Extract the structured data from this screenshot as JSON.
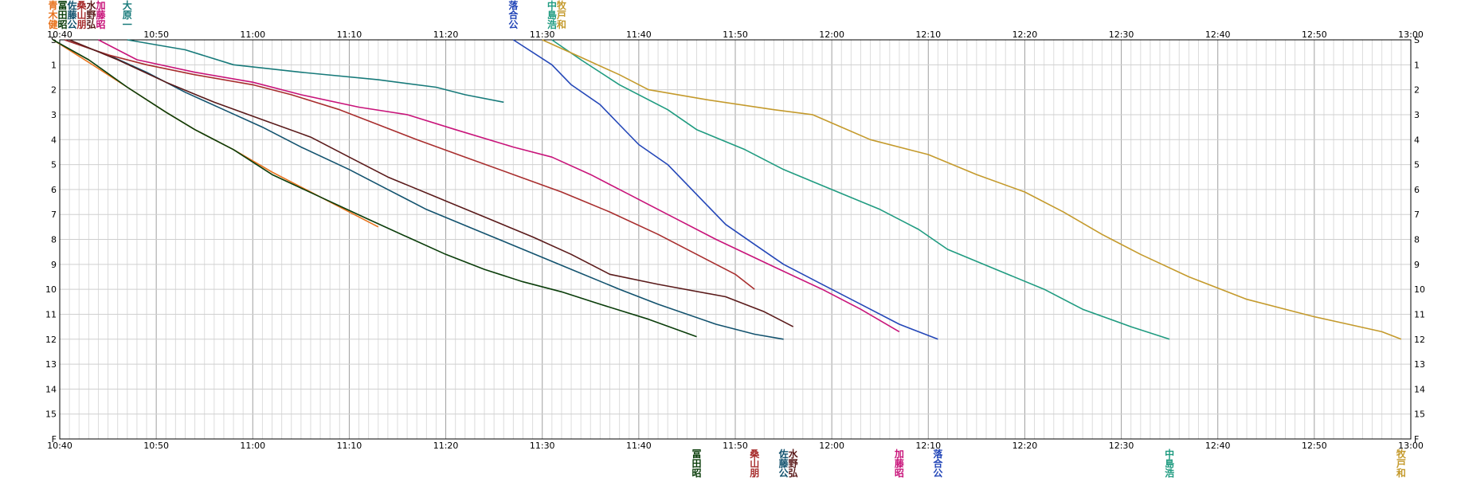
{
  "chart_data": {
    "type": "line",
    "title": "",
    "xlabel": "",
    "ylabel": "",
    "x_ticks": [
      "10:40",
      "10:50",
      "11:00",
      "11:10",
      "11:20",
      "11:30",
      "11:40",
      "11:50",
      "12:00",
      "12:10",
      "12:20",
      "12:30",
      "12:40",
      "12:50",
      "13:00"
    ],
    "xlim": [
      "10:40",
      "13:00"
    ],
    "checkpoint_labels": [
      "S",
      "1",
      "2",
      "3",
      "4",
      "5",
      "6",
      "7",
      "8",
      "9",
      "10",
      "11",
      "12",
      "13",
      "14",
      "15",
      "F"
    ],
    "series": [
      {
        "name": "青木健",
        "label_top": "青木健",
        "color": "#e8741e",
        "points": [
          [
            "10:39.3",
            0
          ],
          [
            "10:43",
            0.9
          ],
          [
            "10:47",
            1.9
          ],
          [
            "10:51",
            2.9
          ],
          [
            "10:54",
            3.6
          ],
          [
            "10:58",
            4.4
          ],
          [
            "11:02",
            5.3
          ],
          [
            "11:06",
            6.1
          ],
          [
            "11:10",
            6.9
          ],
          [
            "11:13",
            7.5
          ]
        ]
      },
      {
        "name": "冨田昭",
        "label_top": "冨田昭",
        "label_bottom": "冨田昭",
        "color": "#0a3d0a",
        "points": [
          [
            "10:39.3",
            0
          ],
          [
            "10:43",
            0.8
          ],
          [
            "10:47",
            1.9
          ],
          [
            "10:51",
            2.9
          ],
          [
            "10:54",
            3.6
          ],
          [
            "10:58",
            4.4
          ],
          [
            "11:02",
            5.4
          ],
          [
            "11:07",
            6.3
          ],
          [
            "11:12",
            7.2
          ],
          [
            "11:16",
            7.9
          ],
          [
            "11:20",
            8.6
          ],
          [
            "11:24",
            9.2
          ],
          [
            "11:28",
            9.7
          ],
          [
            "11:32",
            10.1
          ],
          [
            "11:36",
            10.6
          ],
          [
            "11:41",
            11.2
          ],
          [
            "11:46",
            11.9
          ]
        ]
      },
      {
        "name": "佐藤公",
        "label_top": "佐藤公",
        "label_bottom": "佐藤公",
        "color": "#12526e",
        "points": [
          [
            "10:40.5",
            0
          ],
          [
            "10:45",
            0.6
          ],
          [
            "10:49",
            1.3
          ],
          [
            "10:53",
            2.1
          ],
          [
            "10:57",
            2.8
          ],
          [
            "11:01",
            3.5
          ],
          [
            "11:05",
            4.3
          ],
          [
            "11:10",
            5.2
          ],
          [
            "11:14",
            6.0
          ],
          [
            "11:18",
            6.8
          ],
          [
            "11:23",
            7.6
          ],
          [
            "11:28",
            8.4
          ],
          [
            "11:33",
            9.2
          ],
          [
            "11:38",
            10.0
          ],
          [
            "11:42",
            10.6
          ],
          [
            "11:48",
            11.4
          ],
          [
            "11:52",
            11.8
          ],
          [
            "11:55",
            12.0
          ]
        ]
      },
      {
        "name": "桑山朋",
        "label_top": "桑山朋",
        "label_bottom": "桑山朋",
        "color": "#a82e2e",
        "points": [
          [
            "10:40.5",
            0
          ],
          [
            "10:45",
            0.6
          ],
          [
            "10:49",
            1.0
          ],
          [
            "10:54",
            1.4
          ],
          [
            "11:00",
            1.8
          ],
          [
            "11:04",
            2.2
          ],
          [
            "11:09",
            2.8
          ],
          [
            "11:13",
            3.4
          ],
          [
            "11:17",
            4.0
          ],
          [
            "11:22",
            4.7
          ],
          [
            "11:27",
            5.4
          ],
          [
            "11:32",
            6.1
          ],
          [
            "11:37",
            6.9
          ],
          [
            "11:42",
            7.8
          ],
          [
            "11:47",
            8.8
          ],
          [
            "11:50",
            9.4
          ],
          [
            "11:52",
            10.0
          ]
        ]
      },
      {
        "name": "水野弘",
        "label_top": "水野弘",
        "label_bottom": "水野弘",
        "color": "#5a1a1a",
        "points": [
          [
            "10:41",
            0
          ],
          [
            "10:46",
            0.8
          ],
          [
            "10:51",
            1.7
          ],
          [
            "10:56",
            2.5
          ],
          [
            "11:01",
            3.2
          ],
          [
            "11:06",
            3.9
          ],
          [
            "11:10",
            4.7
          ],
          [
            "11:14",
            5.5
          ],
          [
            "11:19",
            6.3
          ],
          [
            "11:24",
            7.1
          ],
          [
            "11:29",
            7.9
          ],
          [
            "11:33",
            8.6
          ],
          [
            "11:37",
            9.4
          ],
          [
            "11:42",
            9.8
          ],
          [
            "11:49",
            10.3
          ],
          [
            "11:53",
            10.9
          ],
          [
            "11:56",
            11.5
          ]
        ]
      },
      {
        "name": "加藤昭",
        "label_top": "加藤昭",
        "label_bottom": "加藤昭",
        "color": "#c8147a",
        "points": [
          [
            "10:44",
            0
          ],
          [
            "10:48",
            0.8
          ],
          [
            "10:54",
            1.3
          ],
          [
            "11:00",
            1.7
          ],
          [
            "11:05",
            2.2
          ],
          [
            "11:11",
            2.7
          ],
          [
            "11:16",
            3.0
          ],
          [
            "11:21",
            3.6
          ],
          [
            "11:27",
            4.3
          ],
          [
            "11:31",
            4.7
          ],
          [
            "11:35",
            5.4
          ],
          [
            "11:39",
            6.2
          ],
          [
            "11:43",
            7.0
          ],
          [
            "11:48",
            8.0
          ],
          [
            "11:54",
            9.1
          ],
          [
            "11:59",
            10.0
          ],
          [
            "12:03",
            10.8
          ],
          [
            "12:07",
            11.7
          ]
        ]
      },
      {
        "name": "大原一",
        "label_top": "大原一",
        "color": "#177a7a",
        "points": [
          [
            "10:47",
            0
          ],
          [
            "10:53",
            0.4
          ],
          [
            "10:58",
            1.0
          ],
          [
            "11:05",
            1.3
          ],
          [
            "11:13",
            1.6
          ],
          [
            "11:19",
            1.9
          ],
          [
            "11:22",
            2.2
          ],
          [
            "11:26",
            2.5
          ]
        ]
      },
      {
        "name": "落合公",
        "label_top": "落合公",
        "label_bottom": "落合公",
        "color": "#2447b8",
        "points": [
          [
            "11:27",
            0
          ],
          [
            "11:31",
            1.0
          ],
          [
            "11:33",
            1.8
          ],
          [
            "11:36",
            2.6
          ],
          [
            "11:38",
            3.4
          ],
          [
            "11:40",
            4.2
          ],
          [
            "11:43",
            5.0
          ],
          [
            "11:45",
            5.8
          ],
          [
            "11:47",
            6.6
          ],
          [
            "11:49",
            7.4
          ],
          [
            "11:52",
            8.2
          ],
          [
            "11:55",
            9.0
          ],
          [
            "11:59",
            9.8
          ],
          [
            "12:03",
            10.6
          ],
          [
            "12:07",
            11.4
          ],
          [
            "12:11",
            12.0
          ]
        ]
      },
      {
        "name": "中島浩",
        "label_top": "中島浩",
        "label_bottom": "中島浩",
        "color": "#1f9b80",
        "points": [
          [
            "11:31",
            0
          ],
          [
            "11:34",
            0.8
          ],
          [
            "11:38",
            1.8
          ],
          [
            "11:43",
            2.8
          ],
          [
            "11:46",
            3.6
          ],
          [
            "11:51",
            4.4
          ],
          [
            "11:55",
            5.2
          ],
          [
            "12:00",
            6.0
          ],
          [
            "12:05",
            6.8
          ],
          [
            "12:09",
            7.6
          ],
          [
            "12:12",
            8.4
          ],
          [
            "12:17",
            9.2
          ],
          [
            "12:22",
            10.0
          ],
          [
            "12:26",
            10.8
          ],
          [
            "12:31",
            11.5
          ],
          [
            "12:35",
            12.0
          ]
        ]
      },
      {
        "name": "牧戸和",
        "label_top": "牧戸和",
        "label_bottom": "牧戸和",
        "color": "#c49a2c",
        "points": [
          [
            "11:30",
            0
          ],
          [
            "11:34",
            0.7
          ],
          [
            "11:38",
            1.4
          ],
          [
            "11:41",
            2.0
          ],
          [
            "11:47",
            2.4
          ],
          [
            "11:54",
            2.8
          ],
          [
            "11:58",
            3.0
          ],
          [
            "12:01",
            3.5
          ],
          [
            "12:04",
            4.0
          ],
          [
            "12:10",
            4.6
          ],
          [
            "12:15",
            5.4
          ],
          [
            "12:20",
            6.1
          ],
          [
            "12:24",
            6.9
          ],
          [
            "12:28",
            7.8
          ],
          [
            "12:32",
            8.6
          ],
          [
            "12:37",
            9.5
          ],
          [
            "12:43",
            10.4
          ],
          [
            "12:50",
            11.1
          ],
          [
            "12:57",
            11.7
          ],
          [
            "12:59",
            12.0
          ]
        ]
      }
    ]
  }
}
